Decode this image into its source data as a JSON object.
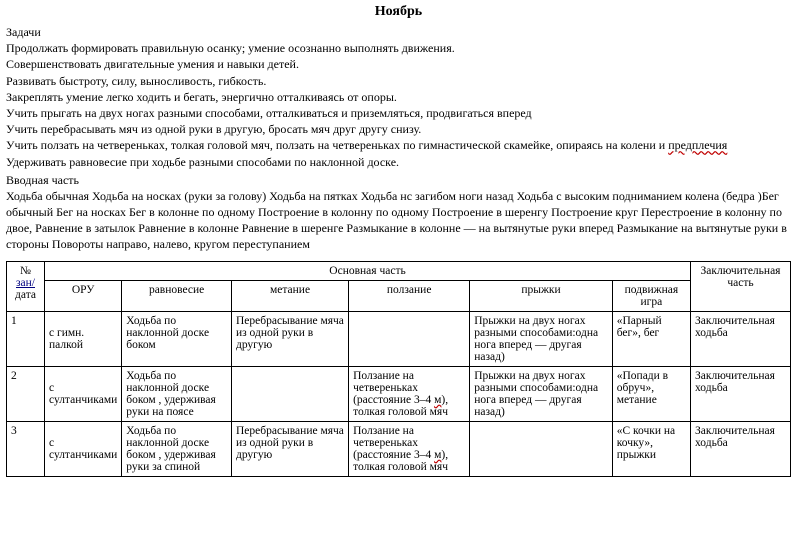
{
  "title": "Ноябрь",
  "sections": {
    "tasks_heading": "Задачи",
    "p1": "Продолжать формировать правильную осанку; умение осознанно выполнять движения.",
    "p2": "Совершенствовать двигательные умения и навыки детей.",
    "p3": "Развивать быстроту, силу, выносливость, гибкость.",
    "p4": "Закреплять умение легко ходить и бегать, энергично отталкиваясь от опоры.",
    "p5": "Учить прыгать на двух ногах разными способами, отталкиваться и приземляться, продвигаться вперед",
    "p6": "Учить перебрасывать мяч из одной руки в другую, бросать  мяч друг другу снизу.",
    "p7a": "Учить ползать на четвереньках, толкая головой мяч, ползать на четвереньках по гимнастической скамейке, опираясь на колени и ",
    "p7b": "предплечия",
    "p8": "Удерживать равновесие при ходьбе разными способами по наклонной доске.",
    "intro_heading": "Вводная часть",
    "p9": "Ходьба обычная Ходьба на носках (руки за голову) Ходьба на пятках  Ходьба нс загибом ноги назад Ходьба с высоким подниманием колена (бедра )Бег обычный Бег на носках Бег в колонне по одному Построение в колонну по одному Построение в шеренгу Построение круг Перестроение в колонну по двое, Равнение в затылок Равнение в колонне  Равнение в шеренге Размыкание в колонне — на вытянутые руки вперед  Размыкание на вытянутые руки в стороны Повороты направо, налево, кругом переступанием"
  },
  "table": {
    "headers": {
      "col_num_a": "№",
      "col_num_link": "зан/",
      "col_num_b": "дата",
      "main": "Основная часть",
      "oru": "ОРУ",
      "balance": "равновесие",
      "throw": "метание",
      "crawl": "ползание",
      "jump": "прыжки",
      "game": "подвижная игра",
      "final": "Заключительная часть"
    },
    "rows": [
      {
        "num": "1",
        "oru": "с гимн. палкой",
        "balance": "Ходьба по наклонной доске боком",
        "throw": "Перебрасывание мяча из одной руки в другую",
        "crawl": "",
        "jump": "Прыжки на двух ногах разными способами:одна нога вперед — другая назад)",
        "game": "«Парный бег», бег",
        "final": "Заключительная ходьба"
      },
      {
        "num": "2",
        "oru": "с султанчиками",
        "balance": "Ходьба по наклонной доске боком , удерживая руки на поясе",
        "throw": "",
        "crawl_a": "Ползание на четвереньках (расстояние 3–4 ",
        "crawl_m": "м",
        "crawl_b": "), толкая головой мяч",
        "jump": "Прыжки на двух ногах разными способами:одна нога вперед — другая назад)",
        "game": "«Попади в обруч», метание",
        "final": "Заключительная ходьба"
      },
      {
        "num": "3",
        "oru": "с султанчиками",
        "balance": "Ходьба по наклонной доске боком , удерживая руки за спиной",
        "throw": "Перебрасывание мяча из одной руки в другую",
        "crawl_a": "Ползание на четвереньках (расстояние 3–4 ",
        "crawl_m": "м",
        "crawl_b": "), толкая головой мяч",
        "jump": "",
        "game": "«С кочки на кочку», прыжки",
        "final": "Заключительная ходьба"
      }
    ]
  },
  "colors": {
    "text": "#000000",
    "bg": "#ffffff",
    "link": "#000080",
    "wavy": "#c00000"
  }
}
